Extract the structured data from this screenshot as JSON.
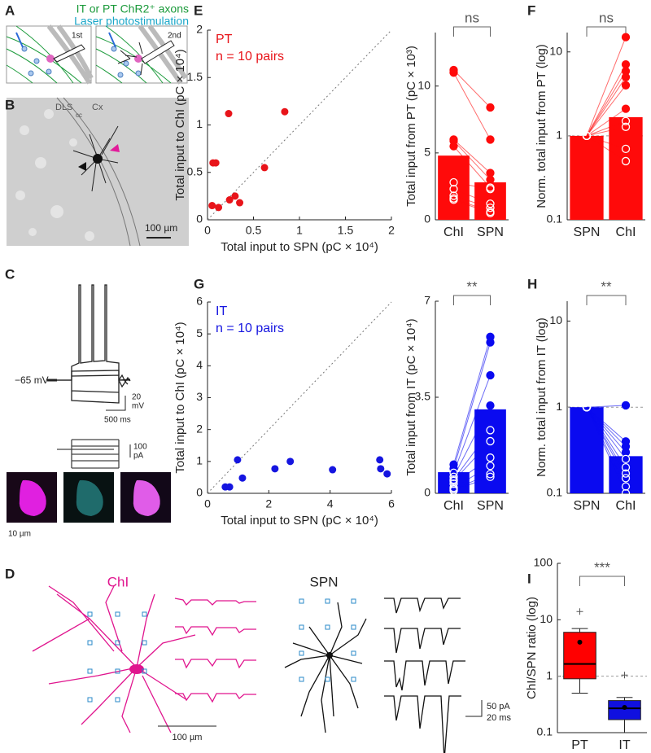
{
  "figure": {
    "panel_labels": [
      "A",
      "B",
      "C",
      "D",
      "E",
      "F",
      "G",
      "H",
      "I"
    ],
    "panel_a": {
      "legend": [
        "IT or PT ChR2⁺ axons",
        "Laser photostimulation"
      ],
      "steps": [
        "1st",
        "2nd"
      ]
    },
    "panel_b": {
      "regions": [
        "DLS",
        "cc",
        "Cx"
      ],
      "scale_bar": "100 µm"
    },
    "panel_c": {
      "holding": "−65 mV",
      "voltage_scale": [
        "20",
        "mV"
      ],
      "time_scale": "500 ms",
      "current_scale": [
        "100",
        "pA"
      ],
      "image_scale": "10 µm"
    },
    "panel_d": {
      "cells": [
        "ChI",
        "SPN"
      ],
      "scale_bar": "100 µm",
      "trace_scale": [
        "50 pA",
        "20 ms"
      ]
    }
  },
  "chart_data": [
    {
      "type": "scatter",
      "title": "PT",
      "subtitle": "n = 10 pairs",
      "color": "#e8141a",
      "x": [
        0.05,
        0.06,
        0.09,
        0.12,
        0.23,
        0.24,
        0.3,
        0.35,
        0.62,
        0.84
      ],
      "y": [
        0.15,
        0.6,
        0.6,
        0.13,
        1.12,
        0.21,
        0.25,
        0.18,
        0.55,
        1.14
      ],
      "xlim": [
        0,
        2
      ],
      "ylim": [
        0,
        2
      ],
      "xticks": [
        0,
        0.5,
        1,
        1.5,
        2
      ],
      "yticks": [
        0,
        0.5,
        1,
        1.5,
        2
      ],
      "xlabel": "Total input to SPN (pC × 10⁴)",
      "ylabel": "Total input to ChI (pC × 10⁴)",
      "diagonal": true
    },
    {
      "type": "bar",
      "categories": [
        "ChI",
        "SPN"
      ],
      "values": [
        4.8,
        2.8
      ],
      "color": "#ff0a0a",
      "points": [
        [
          11.2,
          11,
          6,
          5.9,
          5.5,
          2.8,
          2.3,
          1.8,
          1.6,
          1.5
        ],
        [
          8.4,
          6,
          3.5,
          3,
          2.4,
          2.3,
          1.2,
          0.9,
          0.6,
          0.5
        ]
      ],
      "ylim": [
        0,
        14
      ],
      "yticks": [
        0,
        5,
        10
      ],
      "ylabel": "Total input from PT (pC × 10³)",
      "significance": "ns"
    },
    {
      "type": "bar",
      "log": true,
      "categories": [
        "SPN",
        "ChI"
      ],
      "values": [
        1,
        1.67
      ],
      "color": "#ff0a0a",
      "points": [
        [
          1,
          1,
          1,
          1,
          1,
          1,
          1,
          1,
          1,
          1
        ],
        [
          15,
          7.1,
          5.9,
          5,
          4,
          2.1,
          1.5,
          1.28,
          0.7,
          0.5
        ]
      ],
      "ylim": [
        0.1,
        17
      ],
      "yticks": [
        0.1,
        1,
        10
      ],
      "refline": 1,
      "ylabel": "Norm. total input from PT (log)",
      "significance": "ns"
    },
    {
      "type": "scatter",
      "title": "IT",
      "subtitle": "n = 10 pairs",
      "color": "#1515e0",
      "x": [
        0.58,
        0.72,
        0.98,
        1.14,
        2.2,
        2.7,
        4.08,
        5.62,
        5.65,
        5.86
      ],
      "y": [
        0.2,
        0.2,
        1.05,
        0.48,
        0.77,
        1,
        0.74,
        1.05,
        0.77,
        0.61
      ],
      "xlim": [
        0,
        6
      ],
      "ylim": [
        0,
        6
      ],
      "xticks": [
        0,
        2,
        4,
        6
      ],
      "yticks": [
        0,
        1,
        2,
        3,
        4,
        5,
        6
      ],
      "xlabel": "Total input to SPN (pC × 10⁴)",
      "ylabel": "Total input to ChI (pC × 10⁴)",
      "diagonal": true
    },
    {
      "type": "bar",
      "categories": [
        "ChI",
        "SPN"
      ],
      "values": [
        0.77,
        3.06
      ],
      "color": "#0a0af0",
      "points": [
        [
          1.05,
          0.9,
          0.75,
          0.6,
          0.5,
          0.45,
          0.35,
          0.2,
          0.15,
          0.1
        ],
        [
          5.7,
          5.5,
          4.3,
          3.2,
          2.3,
          1.9,
          1.3,
          1,
          0.7,
          0.6
        ]
      ],
      "ylim": [
        0,
        7
      ],
      "yticks": [
        0,
        3.5,
        7
      ],
      "ylabel": "Total input from IT (pC × 10⁴)",
      "significance": "**"
    },
    {
      "type": "bar",
      "log": true,
      "categories": [
        "SPN",
        "ChI"
      ],
      "values": [
        1,
        0.27
      ],
      "color": "#0a0af0",
      "points": [
        [
          1,
          1,
          1,
          1,
          1,
          1,
          1,
          1,
          1,
          1
        ],
        [
          1.05,
          0.4,
          0.35,
          0.3,
          0.25,
          0.2,
          0.17,
          0.15,
          0.12,
          0.1
        ]
      ],
      "ylim": [
        0.1,
        17
      ],
      "yticks": [
        0.1,
        1,
        10
      ],
      "refline": 1,
      "ylabel": "Norm. total input from IT (log)",
      "significance": "**"
    },
    {
      "type": "box",
      "log": true,
      "categories": [
        "PT",
        "IT"
      ],
      "colors": [
        "#ff0000",
        "#1010e0"
      ],
      "boxes": [
        {
          "whislo": 0.5,
          "q1": 0.9,
          "med": 1.65,
          "q3": 6,
          "whishi": 7,
          "mean": 4,
          "fliers": [
            14
          ]
        },
        {
          "whislo": 0.1,
          "q1": 0.17,
          "med": 0.27,
          "q3": 0.37,
          "whishi": 0.42,
          "mean": 0.28,
          "fliers": [
            1.05
          ]
        }
      ],
      "ylim": [
        0.1,
        100
      ],
      "yticks": [
        0.1,
        1,
        10,
        100
      ],
      "refline": 1,
      "ylabel": "ChI/SPN ratio (log)",
      "significance": "***"
    }
  ]
}
